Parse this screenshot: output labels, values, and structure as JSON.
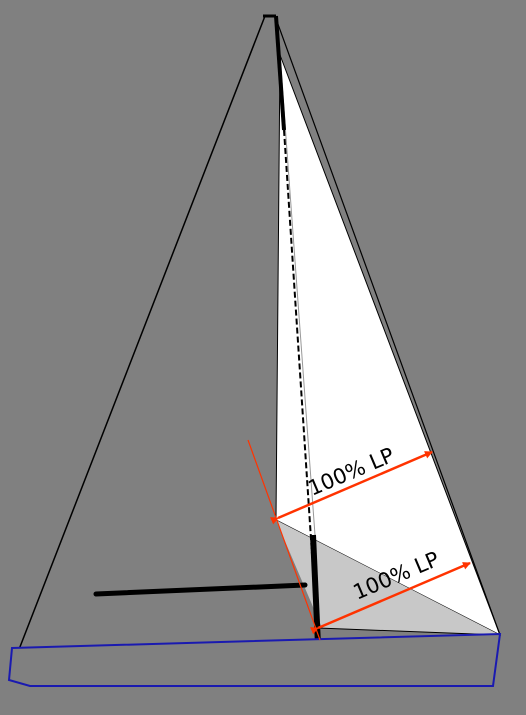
{
  "diagram": {
    "labels": {
      "upper": "100% LP",
      "lower": "100% LP"
    },
    "colors": {
      "background": "#808080",
      "sail_main": "#ffffff",
      "sail_shadow": "#c8c8c8",
      "rigging": "#000000",
      "hull": "#1a1ab0",
      "measure_arrows": "#ff3300"
    }
  }
}
